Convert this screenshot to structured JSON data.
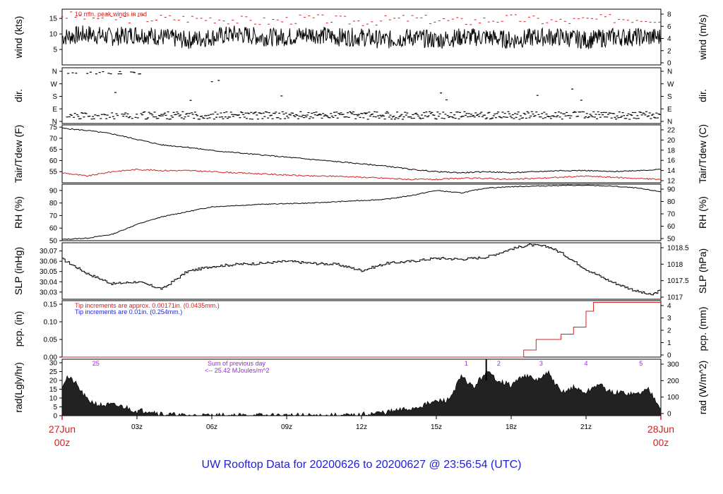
{
  "title": "UW Rooftop Data for 20200626  to  20200627 @ 23:56:54  (UTC)",
  "colors": {
    "trace": "#000000",
    "red": "#d62020",
    "blue": "#1f1fd6",
    "purple": "#9a2ad6",
    "fill": "#222222"
  },
  "time_axis": {
    "ticks": [
      "03z",
      "06z",
      "09z",
      "12z",
      "15z",
      "18z",
      "21z"
    ],
    "start_date": "27Jun",
    "start_time": "00z",
    "end_date": "28Jun",
    "end_time": "00z"
  },
  "chart_data": [
    {
      "type": "line",
      "name": "wind",
      "ylabel": "wind (kts)",
      "ylabel_right": "wind (m/s)",
      "ylim": [
        0,
        18
      ],
      "yticks": [
        "5",
        "10",
        "15"
      ],
      "yticks_right": [
        "0",
        "2",
        "4",
        "6",
        "8"
      ],
      "annotation": "10 min. peak winds in red",
      "series": [
        {
          "x": [
            0,
            1,
            2,
            3,
            4,
            5,
            6,
            7,
            8,
            9,
            10,
            11,
            12,
            13,
            14,
            15,
            16,
            17,
            18,
            19,
            20,
            21,
            22,
            23,
            24
          ],
          "values": [
            9,
            10,
            9,
            10,
            9,
            8,
            9,
            10,
            9,
            9,
            10,
            9,
            9,
            8,
            9,
            8,
            9,
            9,
            8,
            9,
            9,
            8,
            9,
            9,
            9
          ]
        },
        {
          "x": [
            0,
            2,
            4,
            6,
            8,
            10,
            12,
            14,
            16,
            18,
            20,
            22,
            24
          ],
          "values": [
            16,
            15,
            15,
            15,
            14,
            15,
            14,
            15,
            14,
            15,
            14,
            15,
            15
          ]
        }
      ]
    },
    {
      "type": "scatter",
      "name": "dir",
      "ylabel": "dir.",
      "ylabel_right": "dir.",
      "yticks": [
        "N",
        "W",
        "S",
        "E",
        "N"
      ],
      "yticks_right": [
        "N",
        "W",
        "S",
        "E",
        "N"
      ],
      "series": [
        {
          "x": [
            0.3,
            0.8,
            1.2,
            1.8,
            2.3,
            3.0,
            9.6,
            10.3,
            21.9,
            22.6
          ],
          "values": [
            350,
            355,
            345,
            352,
            348,
            357,
            352,
            356,
            350,
            352
          ]
        },
        {
          "x": [
            0.6,
            1.5,
            2.5,
            3.4,
            4.5,
            5.5,
            6.5,
            7.5,
            8.5,
            9.5,
            10.5,
            11.5,
            12.5,
            13.5,
            14.5,
            15.5,
            16.5,
            17.5,
            18.5,
            19.5,
            20.5,
            21.5,
            22.5,
            23.5
          ],
          "values": [
            30,
            40,
            35,
            30,
            45,
            35,
            40,
            30,
            35,
            45,
            30,
            40,
            35,
            30,
            40,
            35,
            45,
            30,
            35,
            40,
            30,
            45,
            35,
            30
          ]
        }
      ]
    },
    {
      "type": "line",
      "name": "temp",
      "ylabel": "Tair/Tdew (F)",
      "ylabel_right": "Tair/Tdew (C)",
      "ylim": [
        50,
        76
      ],
      "yticks": [
        "55",
        "60",
        "65",
        "70",
        "75"
      ],
      "yticks_right": [
        "12",
        "14",
        "16",
        "18",
        "20",
        "22"
      ],
      "series": [
        {
          "x": [
            0,
            1,
            2,
            3,
            4,
            5,
            6,
            7,
            8,
            9,
            10,
            11,
            12,
            13,
            14,
            15,
            16,
            17,
            18,
            19,
            20,
            21,
            22,
            23,
            24
          ],
          "values": [
            74.5,
            73.5,
            72,
            69.5,
            67,
            66,
            64.5,
            63.5,
            62.5,
            61.5,
            60.5,
            59.5,
            58.5,
            57.5,
            56,
            55,
            54.5,
            55,
            54.5,
            55,
            55.5,
            55.5,
            55,
            55.5,
            56
          ]
        },
        {
          "x": [
            0,
            1,
            2,
            3,
            4,
            5,
            6,
            7,
            8,
            9,
            10,
            11,
            12,
            13,
            14,
            15,
            16,
            17,
            18,
            19,
            20,
            21,
            22,
            23,
            24
          ],
          "values": [
            54.5,
            53,
            55,
            56,
            55.5,
            55.5,
            55,
            54.5,
            54,
            53.5,
            53,
            53,
            52.5,
            52,
            51.5,
            51.5,
            52,
            52,
            51.5,
            52,
            52.5,
            53,
            52.5,
            52,
            51.5
          ]
        }
      ]
    },
    {
      "type": "line",
      "name": "rh",
      "ylabel": "RH (%)",
      "ylabel_right": "RH (%)",
      "ylim": [
        50,
        95
      ],
      "yticks": [
        "50",
        "60",
        "70",
        "80",
        "90"
      ],
      "yticks_right": [
        "50",
        "60",
        "70",
        "80",
        "90"
      ],
      "series": [
        {
          "x": [
            0,
            1,
            2,
            3,
            4,
            5,
            6,
            7,
            8,
            9,
            10,
            11,
            12,
            13,
            14,
            15,
            16,
            17,
            18,
            19,
            20,
            21,
            22,
            23,
            24
          ],
          "values": [
            51,
            52,
            55,
            63,
            69,
            73,
            77,
            78,
            79,
            79.5,
            80,
            81,
            82,
            83,
            86,
            90,
            88,
            92,
            93,
            93.5,
            94,
            94,
            93.5,
            92,
            89
          ]
        }
      ]
    },
    {
      "type": "line",
      "name": "slp",
      "ylabel": "SLP (inHg)",
      "ylabel_right": "SLP (hPa)",
      "ylim": [
        30.023,
        30.078
      ],
      "yticks": [
        "30.03",
        "30.04",
        "30.05",
        "30.06",
        "30.07"
      ],
      "yticks_right": [
        "1017",
        "1017.5",
        "1018",
        "1018.5"
      ],
      "series": [
        {
          "x": [
            0,
            1,
            2,
            3,
            4,
            5,
            6,
            7,
            8,
            9,
            10,
            11,
            12,
            13,
            14,
            15,
            16,
            17,
            18,
            18.7,
            19.5,
            20,
            21,
            22,
            23,
            23.6,
            24
          ],
          "values": [
            30.062,
            30.048,
            30.038,
            30.04,
            30.033,
            30.05,
            30.055,
            30.057,
            30.058,
            30.06,
            30.058,
            30.057,
            30.051,
            30.058,
            30.06,
            30.063,
            30.062,
            30.064,
            30.072,
            30.076,
            30.074,
            30.068,
            30.052,
            30.04,
            30.031,
            30.027,
            30.032
          ]
        }
      ]
    },
    {
      "type": "line",
      "name": "pcp",
      "ylabel": "pcp. (in)",
      "ylabel_right": "pcp. (mm)",
      "ylim": [
        0,
        0.16
      ],
      "yticks": [
        "0.00",
        "0.05",
        "0.10",
        "0.15"
      ],
      "yticks_right": [
        "0",
        "1",
        "2",
        "3",
        "4"
      ],
      "annotation_red": "Tip increments are approx. 0.00171in. (0.0435mm.)",
      "annotation_blue": "Tip increments are 0.01in. (0.254mm.)",
      "series": [
        {
          "x": [
            0,
            18.2,
            18.5,
            19,
            20,
            20.5,
            21,
            21.3,
            22,
            24
          ],
          "values": [
            0,
            0,
            0.02,
            0.05,
            0.065,
            0.085,
            0.13,
            0.155,
            0.155,
            0.155
          ]
        }
      ]
    },
    {
      "type": "area",
      "name": "rad",
      "ylabel": "rad(Lgly/hr)",
      "ylabel_right": "rad (W/m^2)",
      "ylim": [
        0,
        32
      ],
      "yticks": [
        "0",
        "5",
        "10",
        "15",
        "20",
        "25",
        "30"
      ],
      "yticks_right": [
        "0",
        "100",
        "200",
        "300"
      ],
      "annotation": "Sum of previous day",
      "annotation_value": "<-- 25.42 MJoules/m^2",
      "hour_labels": [
        "25",
        "1",
        "2",
        "3",
        "4",
        "5"
      ],
      "series": [
        {
          "x": [
            0,
            0.2,
            0.5,
            1,
            1.5,
            2,
            2.5,
            3,
            3.5,
            4,
            4.5,
            4.8,
            11.9,
            12,
            13,
            14,
            15,
            15.5,
            16,
            16.5,
            17,
            17.5,
            18,
            18.5,
            19,
            19.5,
            20,
            20.5,
            21,
            21.5,
            22,
            22.5,
            23,
            23.5,
            24
          ],
          "values": [
            17,
            22,
            19,
            9,
            6,
            6,
            5,
            2.5,
            3,
            1,
            0.3,
            0,
            0,
            0.5,
            2,
            4,
            8,
            9,
            22,
            16,
            25,
            20,
            17,
            23,
            20,
            24,
            13,
            16,
            13,
            18,
            13,
            13,
            12,
            15,
            5
          ]
        }
      ]
    }
  ]
}
